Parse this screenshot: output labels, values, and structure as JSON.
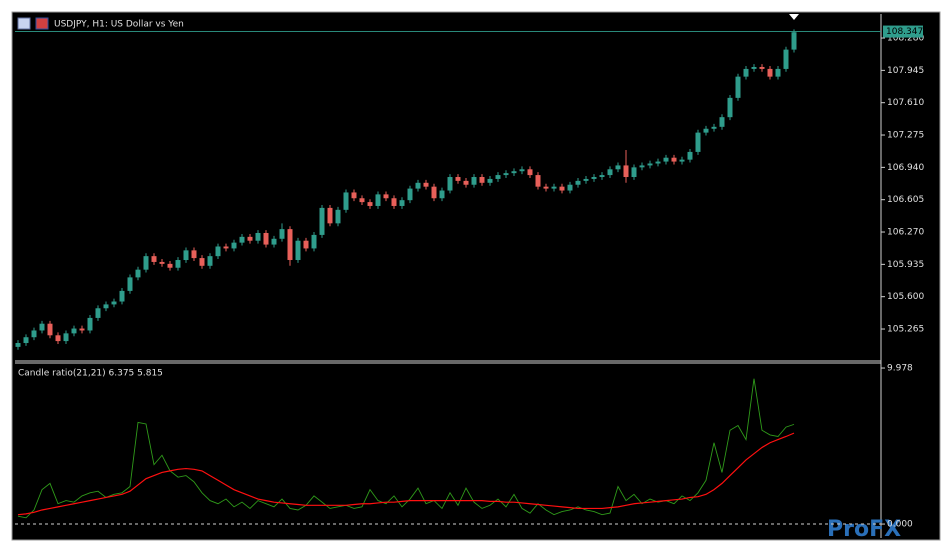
{
  "chart_data": [
    {
      "type": "candlestick",
      "title": "USDJPY, H1:  US Dollar vs Yen",
      "bull_color": "#2f9d8c",
      "bear_color": "#e8605a",
      "ylim": [
        104.944,
        108.529
      ],
      "yticks": [
        {
          "value": 108.28,
          "label": "108.280"
        },
        107.945,
        {
          "value": 107.61,
          "label": "107.610"
        },
        107.275,
        {
          "value": 106.94,
          "label": "106.940"
        },
        106.605,
        {
          "value": 106.27,
          "label": "106.270"
        },
        105.935,
        {
          "value": 105.6,
          "label": "105.600"
        },
        105.265
      ],
      "last_price": 108.347,
      "open": [
        105.08,
        105.12,
        105.18,
        105.25,
        105.32,
        105.2,
        105.14,
        105.22,
        105.27,
        105.25,
        105.38,
        105.48,
        105.52,
        105.55,
        105.66,
        105.8,
        105.88,
        106.02,
        105.96,
        105.94,
        105.9,
        105.98,
        106.08,
        106.0,
        105.92,
        106.02,
        106.12,
        106.1,
        106.16,
        106.22,
        106.18,
        106.26,
        106.14,
        106.2,
        106.3,
        105.98,
        106.18,
        106.1,
        106.24,
        106.52,
        106.36,
        106.5,
        106.68,
        106.62,
        106.58,
        106.54,
        106.66,
        106.62,
        106.54,
        106.6,
        106.72,
        106.78,
        106.74,
        106.62,
        106.7,
        106.84,
        106.8,
        106.76,
        106.84,
        106.78,
        106.82,
        106.86,
        106.88,
        106.9,
        106.92,
        106.86,
        106.74,
        106.72,
        106.74,
        106.7,
        106.76,
        106.8,
        106.82,
        106.84,
        106.86,
        106.92,
        106.96,
        106.84,
        106.94,
        106.96,
        106.98,
        107.0,
        107.04,
        107.0,
        107.02,
        107.1,
        107.3,
        107.34,
        107.36,
        107.46,
        107.66,
        107.88,
        107.96,
        107.98,
        107.96,
        107.88,
        107.96,
        108.16
      ],
      "high": [
        105.15,
        105.21,
        105.28,
        105.35,
        105.35,
        105.23,
        105.25,
        105.3,
        105.3,
        105.41,
        105.51,
        105.55,
        105.58,
        105.69,
        105.83,
        105.91,
        106.05,
        106.05,
        105.99,
        105.97,
        106.01,
        106.11,
        106.11,
        106.03,
        106.05,
        106.15,
        106.15,
        106.19,
        106.25,
        106.25,
        106.29,
        106.29,
        106.23,
        106.36,
        106.33,
        106.21,
        106.21,
        106.27,
        106.55,
        106.55,
        106.53,
        106.71,
        106.71,
        106.65,
        106.61,
        106.69,
        106.69,
        106.65,
        106.63,
        106.75,
        106.81,
        106.81,
        106.77,
        106.73,
        106.87,
        106.87,
        106.83,
        106.87,
        106.87,
        106.85,
        106.89,
        106.91,
        106.93,
        106.95,
        106.95,
        106.89,
        106.77,
        106.77,
        106.77,
        106.79,
        106.83,
        106.85,
        106.87,
        106.89,
        106.95,
        106.99,
        107.12,
        106.97,
        106.99,
        107.01,
        107.03,
        107.07,
        107.07,
        107.05,
        107.13,
        107.33,
        107.37,
        107.39,
        107.49,
        107.69,
        107.91,
        107.99,
        108.01,
        108.01,
        107.99,
        107.99,
        108.19,
        108.37
      ],
      "low": [
        105.05,
        105.09,
        105.15,
        105.22,
        105.17,
        105.11,
        105.11,
        105.19,
        105.22,
        105.22,
        105.35,
        105.45,
        105.49,
        105.52,
        105.63,
        105.77,
        105.85,
        105.93,
        105.91,
        105.87,
        105.87,
        105.95,
        105.97,
        105.89,
        105.89,
        105.99,
        106.07,
        106.07,
        106.13,
        106.15,
        106.15,
        106.11,
        106.11,
        106.17,
        105.92,
        105.95,
        106.07,
        106.07,
        106.21,
        106.33,
        106.33,
        106.47,
        106.59,
        106.55,
        106.51,
        106.51,
        106.59,
        106.51,
        106.51,
        106.57,
        106.69,
        106.71,
        106.59,
        106.59,
        106.67,
        106.77,
        106.73,
        106.73,
        106.75,
        106.75,
        106.79,
        106.83,
        106.85,
        106.87,
        106.83,
        106.71,
        106.69,
        106.69,
        106.67,
        106.67,
        106.73,
        106.77,
        106.79,
        106.81,
        106.83,
        106.89,
        106.78,
        106.81,
        106.91,
        106.93,
        106.95,
        106.97,
        106.97,
        106.97,
        106.99,
        107.07,
        107.27,
        107.31,
        107.33,
        107.43,
        107.63,
        107.85,
        107.93,
        107.93,
        107.85,
        107.85,
        107.93,
        108.13
      ],
      "close": [
        105.12,
        105.18,
        105.25,
        105.32,
        105.2,
        105.14,
        105.22,
        105.27,
        105.25,
        105.38,
        105.48,
        105.52,
        105.55,
        105.66,
        105.8,
        105.88,
        106.02,
        105.96,
        105.94,
        105.9,
        105.98,
        106.08,
        106.0,
        105.92,
        106.02,
        106.12,
        106.1,
        106.16,
        106.22,
        106.18,
        106.26,
        106.14,
        106.2,
        106.3,
        105.98,
        106.18,
        106.1,
        106.24,
        106.52,
        106.36,
        106.5,
        106.68,
        106.62,
        106.58,
        106.54,
        106.66,
        106.62,
        106.54,
        106.6,
        106.72,
        106.78,
        106.74,
        106.62,
        106.7,
        106.84,
        106.8,
        106.76,
        106.84,
        106.78,
        106.82,
        106.86,
        106.88,
        106.9,
        106.92,
        106.86,
        106.74,
        106.72,
        106.74,
        106.7,
        106.76,
        106.8,
        106.82,
        106.84,
        106.86,
        106.92,
        106.96,
        106.84,
        106.94,
        106.96,
        106.98,
        107.0,
        107.04,
        107.0,
        107.02,
        107.1,
        107.3,
        107.34,
        107.36,
        107.46,
        107.66,
        107.88,
        107.96,
        107.98,
        107.96,
        107.88,
        107.96,
        108.16,
        108.34
      ]
    },
    {
      "type": "line",
      "title": "Candle ratio(21,21) 6.375 5.815",
      "ylim": [
        -0.7,
        10.3
      ],
      "yticks": [
        9.978,
        {
          "value": 0,
          "label": "0.000"
        }
      ],
      "series": [
        {
          "color": "#2f9a1a",
          "values": [
            0.5,
            0.4,
            0.9,
            2.2,
            2.6,
            1.3,
            1.5,
            1.4,
            1.8,
            2.0,
            2.1,
            1.7,
            1.9,
            2.0,
            2.4,
            6.5,
            6.4,
            3.8,
            4.4,
            3.4,
            3.0,
            3.1,
            2.7,
            2.0,
            1.5,
            1.3,
            1.6,
            1.1,
            1.4,
            1.0,
            1.5,
            1.3,
            1.1,
            1.6,
            1.0,
            0.9,
            1.2,
            1.8,
            1.4,
            1.0,
            1.1,
            1.2,
            1.0,
            1.1,
            2.2,
            1.5,
            1.3,
            1.8,
            1.1,
            1.6,
            2.3,
            1.3,
            1.5,
            1.0,
            2.0,
            1.2,
            2.3,
            1.4,
            1.0,
            1.2,
            1.6,
            1.1,
            1.9,
            1.0,
            0.7,
            1.3,
            0.9,
            0.6,
            0.8,
            0.9,
            1.1,
            0.9,
            0.8,
            0.6,
            0.7,
            2.4,
            1.5,
            1.9,
            1.3,
            1.6,
            1.4,
            1.5,
            1.3,
            1.8,
            1.5,
            2.0,
            2.8,
            5.2,
            3.3,
            6.0,
            6.3,
            5.4,
            9.3,
            6.0,
            5.7,
            5.6,
            6.2,
            6.375
          ]
        },
        {
          "color": "#ff1010",
          "values": [
            0.6,
            0.65,
            0.75,
            0.9,
            1.0,
            1.1,
            1.2,
            1.3,
            1.4,
            1.5,
            1.6,
            1.7,
            1.8,
            1.9,
            2.1,
            2.5,
            2.9,
            3.1,
            3.3,
            3.4,
            3.5,
            3.55,
            3.5,
            3.4,
            3.1,
            2.8,
            2.5,
            2.2,
            2.0,
            1.8,
            1.6,
            1.5,
            1.4,
            1.35,
            1.3,
            1.25,
            1.2,
            1.2,
            1.2,
            1.2,
            1.2,
            1.2,
            1.25,
            1.3,
            1.3,
            1.35,
            1.4,
            1.4,
            1.45,
            1.5,
            1.5,
            1.5,
            1.5,
            1.5,
            1.5,
            1.5,
            1.5,
            1.5,
            1.5,
            1.45,
            1.45,
            1.4,
            1.4,
            1.35,
            1.3,
            1.25,
            1.2,
            1.15,
            1.1,
            1.05,
            1.0,
            1.0,
            1.0,
            1.0,
            1.05,
            1.1,
            1.2,
            1.3,
            1.35,
            1.4,
            1.45,
            1.5,
            1.55,
            1.6,
            1.7,
            1.75,
            1.9,
            2.2,
            2.6,
            3.1,
            3.6,
            4.1,
            4.5,
            4.9,
            5.2,
            5.4,
            5.6,
            5.815
          ]
        }
      ]
    }
  ],
  "watermark": "ProFX"
}
